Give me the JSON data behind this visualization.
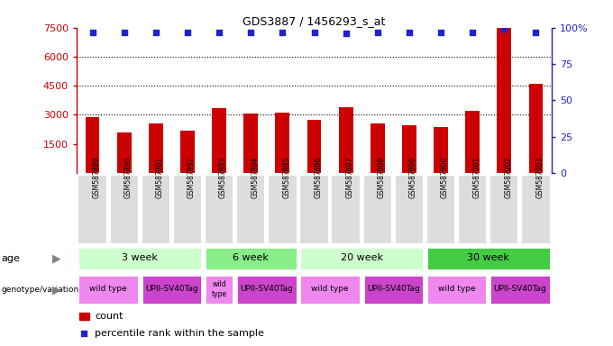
{
  "title": "GDS3887 / 1456293_s_at",
  "samples": [
    "GSM587889",
    "GSM587890",
    "GSM587891",
    "GSM587892",
    "GSM587893",
    "GSM587894",
    "GSM587895",
    "GSM587896",
    "GSM587897",
    "GSM587898",
    "GSM587899",
    "GSM587900",
    "GSM587901",
    "GSM587902",
    "GSM587903"
  ],
  "counts": [
    2900,
    2100,
    2550,
    2200,
    3350,
    3050,
    3100,
    2750,
    3400,
    2550,
    2450,
    2350,
    3200,
    7500,
    4600
  ],
  "percentile_ranks": [
    97,
    97,
    97,
    97,
    97,
    97,
    97,
    97,
    96,
    97,
    97,
    97,
    97,
    99,
    97
  ],
  "ylim_left": [
    0,
    7500
  ],
  "ylim_right": [
    0,
    100
  ],
  "yticks_left": [
    1500,
    3000,
    4500,
    6000,
    7500
  ],
  "yticks_right": [
    0,
    25,
    50,
    75,
    100
  ],
  "bar_color": "#cc0000",
  "dot_color": "#2222cc",
  "age_groups": [
    {
      "label": "3 week",
      "start": 0,
      "end": 3,
      "color": "#ccffcc"
    },
    {
      "label": "6 week",
      "start": 4,
      "end": 6,
      "color": "#88ee88"
    },
    {
      "label": "20 week",
      "start": 7,
      "end": 10,
      "color": "#ccffcc"
    },
    {
      "label": "30 week",
      "start": 11,
      "end": 14,
      "color": "#44cc44"
    }
  ],
  "genotype_groups": [
    {
      "label": "wild type",
      "start": 0,
      "end": 1,
      "color": "#ee88ee"
    },
    {
      "label": "UPII-SV40Tag",
      "start": 2,
      "end": 3,
      "color": "#cc44cc"
    },
    {
      "label": "wild\ntype",
      "start": 4,
      "end": 4,
      "color": "#ee88ee"
    },
    {
      "label": "UPII-SV40Tag",
      "start": 5,
      "end": 6,
      "color": "#cc44cc"
    },
    {
      "label": "wild type",
      "start": 7,
      "end": 8,
      "color": "#ee88ee"
    },
    {
      "label": "UPII-SV40Tag",
      "start": 9,
      "end": 10,
      "color": "#cc44cc"
    },
    {
      "label": "wild type",
      "start": 11,
      "end": 12,
      "color": "#ee88ee"
    },
    {
      "label": "UPII-SV40Tag",
      "start": 13,
      "end": 14,
      "color": "#cc44cc"
    }
  ],
  "left_axis_color": "#cc0000",
  "right_axis_color": "#2222cc",
  "grid_color": "#000000",
  "sample_bg_color": "#dddddd",
  "fig_width": 6.8,
  "fig_height": 3.84,
  "dpi": 100
}
